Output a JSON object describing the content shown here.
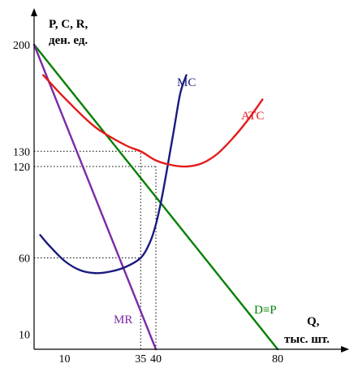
{
  "chart_data": {
    "type": "line",
    "ylabel_line1": "P, C, R,",
    "ylabel_line2": "ден. ед.",
    "xlabel_line1": "Q,",
    "xlabel_line2": "тыс. шт.",
    "xlim": [
      0,
      100
    ],
    "ylim": [
      0,
      210
    ],
    "x_ticks": [
      10,
      35,
      40,
      80
    ],
    "y_ticks": [
      10,
      60,
      120,
      130,
      200
    ],
    "reference_lines": [
      {
        "type": "horizontal",
        "y": 130,
        "x_from": 0,
        "x_to": 35
      },
      {
        "type": "horizontal",
        "y": 120,
        "x_from": 0,
        "x_to": 40
      },
      {
        "type": "horizontal",
        "y": 60,
        "x_from": 0,
        "x_to": 35
      },
      {
        "type": "vertical",
        "x": 35,
        "y_from": 0,
        "y_to": 130
      },
      {
        "type": "vertical",
        "x": 40,
        "y_from": 0,
        "y_to": 120
      }
    ],
    "series": [
      {
        "name": "D≡P",
        "color": "#008000",
        "points": [
          [
            0,
            200
          ],
          [
            80,
            0
          ]
        ]
      },
      {
        "name": "MR",
        "color": "#7b2aa4",
        "points": [
          [
            0,
            200
          ],
          [
            40,
            0
          ]
        ]
      },
      {
        "name": "MC",
        "color": "#1a1a80",
        "points": [
          [
            2,
            75
          ],
          [
            5,
            68
          ],
          [
            10,
            58
          ],
          [
            15,
            52
          ],
          [
            20,
            50
          ],
          [
            25,
            51
          ],
          [
            30,
            54
          ],
          [
            35,
            60
          ],
          [
            38,
            70
          ],
          [
            40,
            82
          ],
          [
            42,
            100
          ],
          [
            44,
            122
          ],
          [
            46,
            145
          ],
          [
            48,
            168
          ],
          [
            50,
            180
          ]
        ]
      },
      {
        "name": "ATC",
        "color": "#e31b1b",
        "points": [
          [
            3,
            180
          ],
          [
            10,
            165
          ],
          [
            20,
            146
          ],
          [
            30,
            134
          ],
          [
            35,
            130
          ],
          [
            40,
            124
          ],
          [
            45,
            121
          ],
          [
            50,
            120
          ],
          [
            55,
            122
          ],
          [
            60,
            128
          ],
          [
            65,
            138
          ],
          [
            70,
            150
          ],
          [
            75,
            164
          ]
        ]
      }
    ]
  }
}
